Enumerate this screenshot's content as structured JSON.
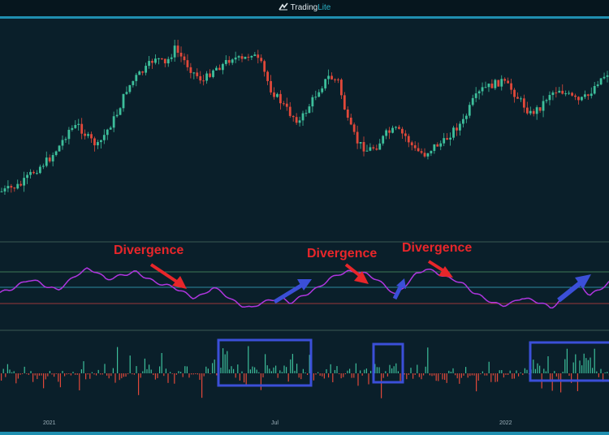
{
  "header": {
    "brand_prefix": "Trading",
    "brand_suffix": "Lite",
    "logo_icon": "tradinglite-logo-icon"
  },
  "colors": {
    "background": "#0a1f2a",
    "up": "#3dbf9b",
    "down": "#e0483a",
    "oscillator": "#b036e0",
    "arrow_red": "#e8262a",
    "arrow_blue": "#3b4fd8",
    "box": "#3b4fd8",
    "accent": "#1f8fb0"
  },
  "annotations": {
    "d1": "Divergence",
    "d2": "Divergence",
    "d3": "Divergence"
  },
  "x_axis": {
    "ticks": [
      "2021",
      "Jul",
      "2022"
    ]
  },
  "chart_data": {
    "type": "line",
    "title": "",
    "xlabel": "",
    "ylabel": "",
    "grid": false,
    "series": [
      {
        "values": [
          236,
          232,
          228,
          215,
          205,
          195,
          180,
          160,
          155,
          170,
          180,
          160,
          140,
          110,
          95,
          85,
          70,
          80,
          60,
          75,
          90,
          100,
          85,
          80,
          70,
          75,
          65,
          80,
          110,
          125,
          140,
          150,
          130,
          110,
          95,
          100,
          150,
          175,
          185,
          180,
          165,
          160,
          168,
          185,
          190,
          180,
          175,
          160,
          150,
          125,
          110,
          105,
          100,
          110,
          125,
          140,
          132,
          115,
          110,
          118,
          125,
          118,
          100,
          90
        ]
      },
      {
        "values": [
          -0.2,
          -0.1,
          0.1,
          0.3,
          0.2,
          0.0,
          -0.1,
          0.2,
          0.5,
          0.7,
          0.6,
          0.3,
          0.4,
          0.5,
          0.6,
          0.4,
          0.2,
          0.1,
          0.0,
          -0.2,
          -0.4,
          -0.3,
          0.0,
          -0.2,
          -0.5,
          -0.7,
          -0.8,
          -0.6,
          -0.5,
          -0.4,
          -0.6,
          -0.4,
          -0.2,
          0.0,
          0.3,
          0.5,
          0.6,
          0.6,
          0.5,
          0.3,
          0.0,
          -0.3,
          0.1,
          0.5,
          0.7,
          0.6,
          0.4,
          0.3,
          0.1,
          -0.2,
          -0.4,
          -0.6,
          -0.7,
          -0.6,
          -0.4,
          -0.5,
          -0.6,
          -0.8,
          -0.5,
          0.0,
          0.1,
          -0.3,
          -0.1,
          0.2
        ]
      }
    ]
  }
}
